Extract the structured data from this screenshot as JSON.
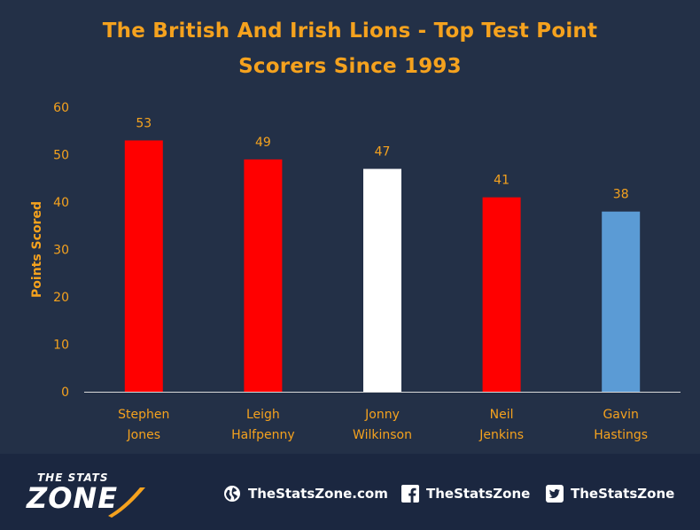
{
  "chart_data": {
    "type": "bar",
    "title_lines": [
      "The British And Irish Lions - Top Test Point",
      "Scorers Since 1993"
    ],
    "xlabel": "",
    "ylabel": "Points Scored",
    "ylim": [
      0,
      60
    ],
    "yticks": [
      0,
      10,
      20,
      30,
      40,
      50,
      60
    ],
    "grid": false,
    "legend": "none",
    "categories": [
      [
        "Stephen",
        "Jones"
      ],
      [
        "Leigh",
        "Halfpenny"
      ],
      [
        "Jonny",
        "Wilkinson"
      ],
      [
        "Neil",
        "Jenkins"
      ],
      [
        "Gavin",
        "Hastings"
      ]
    ],
    "values": [
      53,
      49,
      47,
      41,
      38
    ],
    "data_labels": [
      "53",
      "49",
      "47",
      "41",
      "38"
    ],
    "bar_colors": [
      "#ff0000",
      "#ff0000",
      "#ffffff",
      "#ff0000",
      "#5b9bd5"
    ],
    "text_color": "#f5a21e",
    "axis_color": "#d9d9d9"
  },
  "footer": {
    "logo_top": "THE STATS",
    "logo_bottom": "ZONE",
    "website": "TheStatsZone.com",
    "facebook": "TheStatsZone",
    "twitter": "TheStatsZone"
  },
  "icons": [
    "globe-icon",
    "facebook-icon",
    "twitter-icon"
  ]
}
